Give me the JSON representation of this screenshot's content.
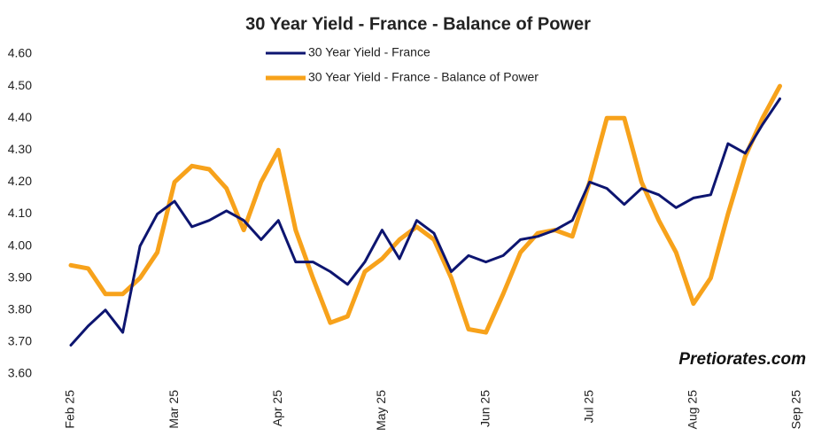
{
  "chart_data": {
    "type": "line",
    "title": "30 Year Yield - France - Balance of Power",
    "categories": [
      "Feb 25",
      null,
      null,
      null,
      null,
      null,
      "Mar 25",
      null,
      null,
      null,
      null,
      null,
      "Apr 25",
      null,
      null,
      null,
      null,
      null,
      "May 25",
      null,
      null,
      null,
      null,
      null,
      "Jun 25",
      null,
      null,
      null,
      null,
      null,
      "Jul 25",
      null,
      null,
      null,
      null,
      null,
      "Aug 25",
      null,
      null,
      null,
      null,
      null,
      "Sep 25"
    ],
    "series": [
      {
        "name": "30 Year Yield - France",
        "color": "#0d1570",
        "values": [
          3.69,
          3.75,
          3.8,
          3.73,
          4.0,
          4.1,
          4.14,
          4.06,
          4.08,
          4.11,
          4.08,
          4.02,
          4.08,
          3.95,
          3.95,
          3.92,
          3.88,
          3.95,
          4.05,
          3.96,
          4.08,
          4.04,
          3.92,
          3.97,
          3.95,
          3.97,
          4.02,
          4.03,
          4.05,
          4.08,
          4.2,
          4.18,
          4.13,
          4.18,
          4.16,
          4.12,
          4.15,
          4.16,
          4.32,
          4.29,
          4.38,
          4.46,
          null
        ]
      },
      {
        "name": "30 Year Yield - France - Balance of Power",
        "color": "#f7a21b",
        "values": [
          3.94,
          3.93,
          3.85,
          3.85,
          3.9,
          3.98,
          4.2,
          4.25,
          4.24,
          4.18,
          4.05,
          4.2,
          4.3,
          4.05,
          3.9,
          3.76,
          3.78,
          3.92,
          3.96,
          4.02,
          4.06,
          4.02,
          3.9,
          3.74,
          3.73,
          3.85,
          3.98,
          4.04,
          4.05,
          4.03,
          4.2,
          4.4,
          4.4,
          4.2,
          4.08,
          3.98,
          3.82,
          3.9,
          4.1,
          4.28,
          4.4,
          4.5,
          null
        ]
      }
    ],
    "ylim": [
      3.6,
      4.6
    ],
    "yticks": [
      {
        "value": 3.6,
        "label": "3.60"
      },
      {
        "value": 3.7,
        "label": "3.70"
      },
      {
        "value": 3.8,
        "label": "3.80"
      },
      {
        "value": 3.9,
        "label": "3.90"
      },
      {
        "value": 4.0,
        "label": "4.00"
      },
      {
        "value": 4.1,
        "label": "4.10"
      },
      {
        "value": 4.2,
        "label": "4.20"
      },
      {
        "value": 4.3,
        "label": "4.30"
      },
      {
        "value": 4.4,
        "label": "4.40"
      },
      {
        "value": 4.5,
        "label": "4.50"
      },
      {
        "value": 4.6,
        "label": "4.60"
      }
    ],
    "grid": false,
    "legend": "top",
    "watermark": "Pretiorates.com"
  }
}
